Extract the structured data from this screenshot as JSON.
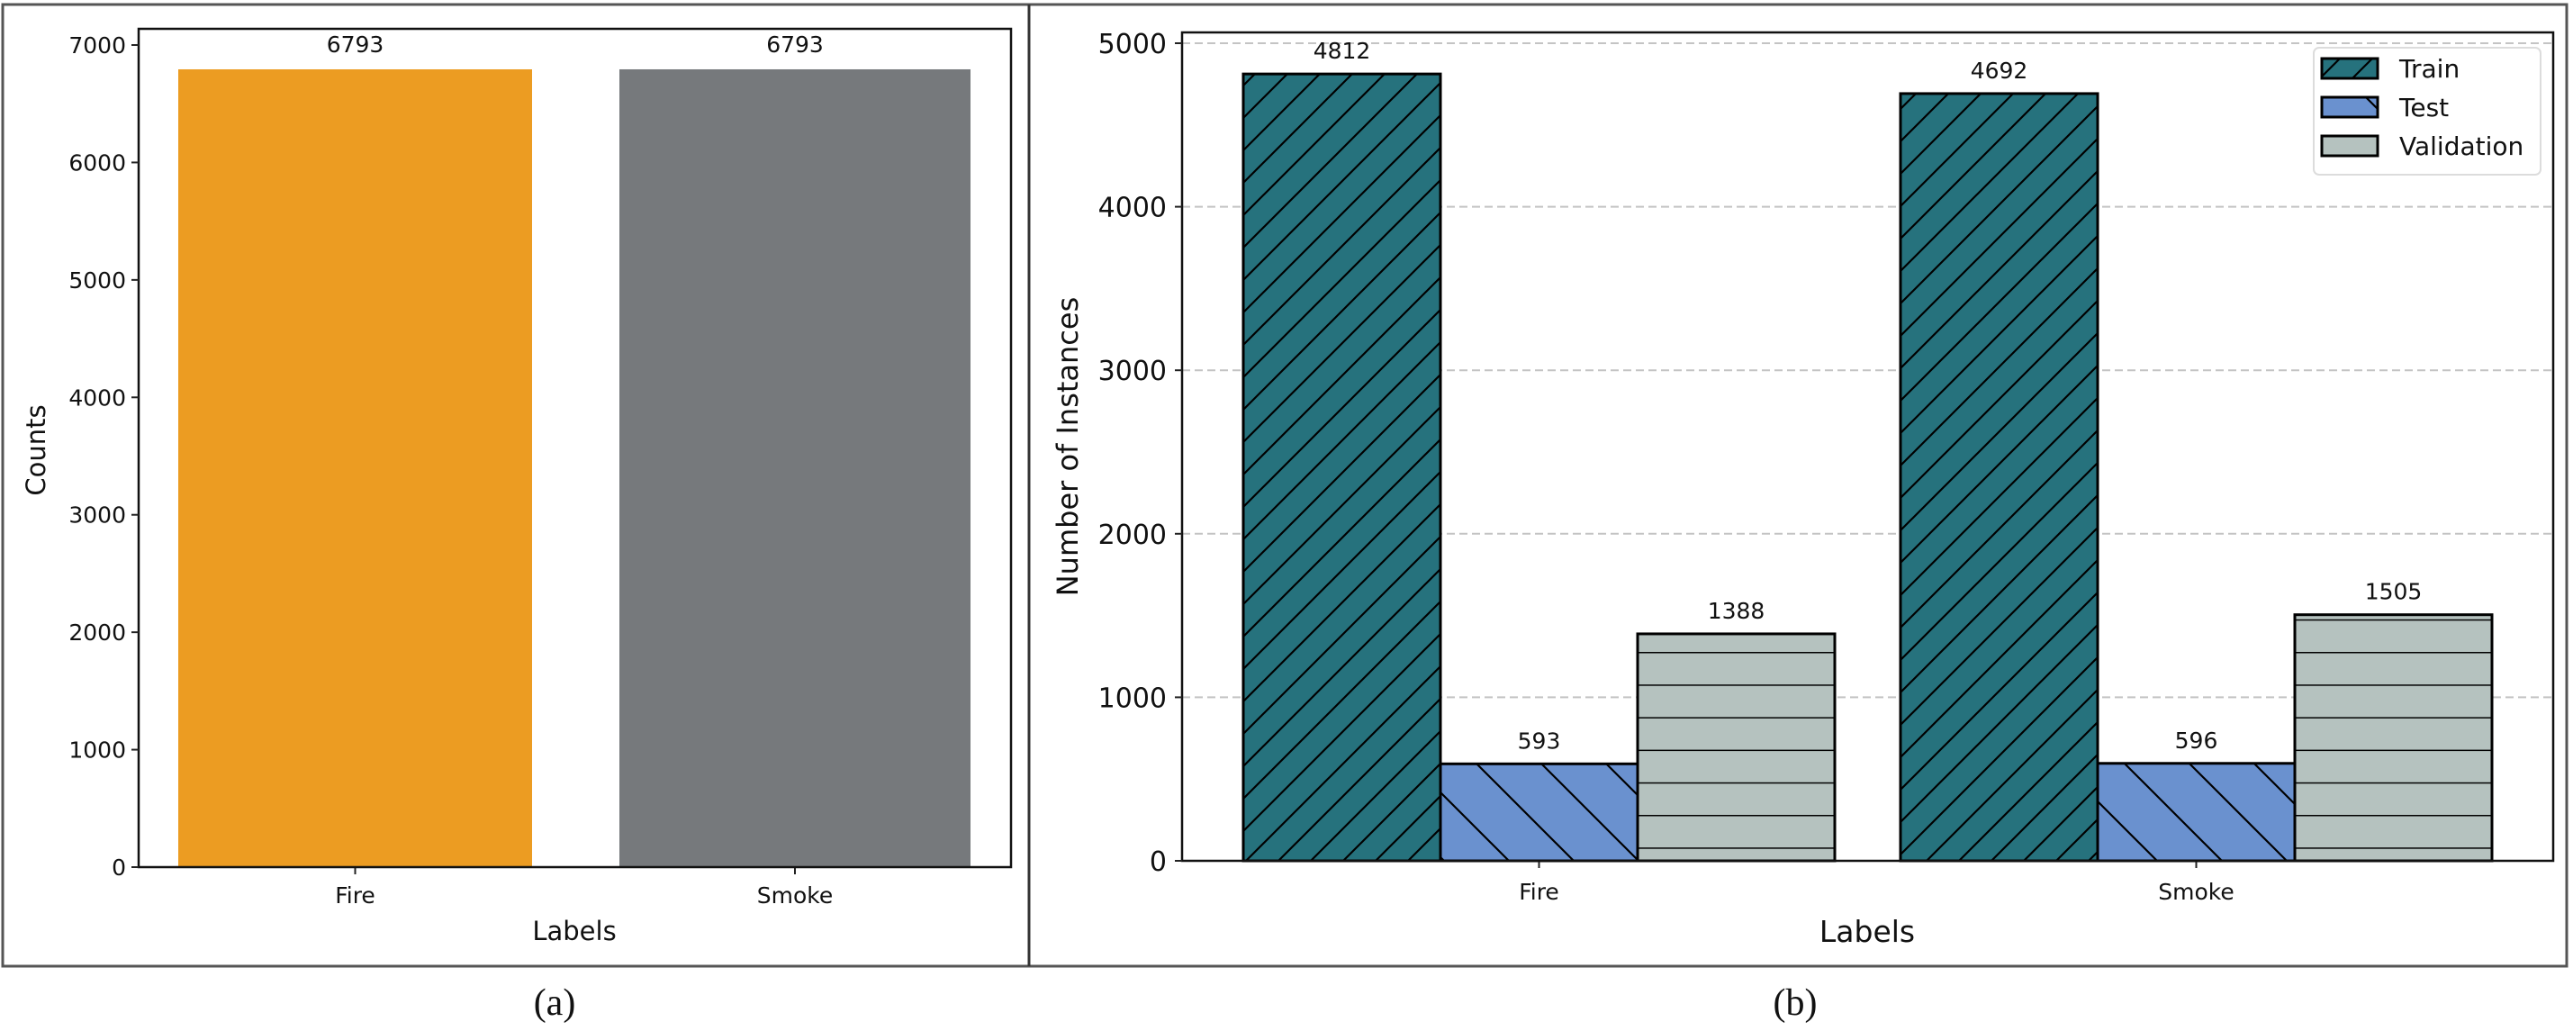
{
  "figure": {
    "panels": [
      {
        "caption": "(a)"
      },
      {
        "caption": "(b)"
      }
    ]
  },
  "chart_data": [
    {
      "type": "bar",
      "panel": "(a)",
      "title": "",
      "xlabel": "Labels",
      "ylabel": "Counts",
      "categories": [
        "Fire",
        "Smoke"
      ],
      "values": [
        6793,
        6793
      ],
      "value_labels": [
        "6793",
        "6793"
      ],
      "colors": [
        "#ec9c22",
        "#76797c"
      ],
      "ylim": [
        0,
        7150
      ],
      "yticks": [
        0,
        1000,
        2000,
        3000,
        4000,
        5000,
        6000,
        7000
      ],
      "grid": false,
      "legend": null
    },
    {
      "type": "bar",
      "panel": "(b)",
      "title": "",
      "xlabel": "Labels",
      "ylabel": "Number of Instances",
      "categories": [
        "Fire",
        "Smoke"
      ],
      "series": [
        {
          "name": "Train",
          "values": [
            4812,
            4692
          ],
          "color": "#26727d",
          "hatch": "/"
        },
        {
          "name": "Test",
          "values": [
            593,
            596
          ],
          "color": "#6a91cf",
          "hatch": "\\"
        },
        {
          "name": "Validation",
          "values": [
            1388,
            1505
          ],
          "color": "#b5c2bf",
          "hatch": "-"
        }
      ],
      "ylim": [
        0,
        5050
      ],
      "yticks": [
        0,
        1000,
        2000,
        3000,
        4000,
        5000
      ],
      "grid": "y-dashed",
      "legend": {
        "position": "upper right",
        "entries": [
          "Train",
          "Test",
          "Validation"
        ]
      }
    }
  ]
}
